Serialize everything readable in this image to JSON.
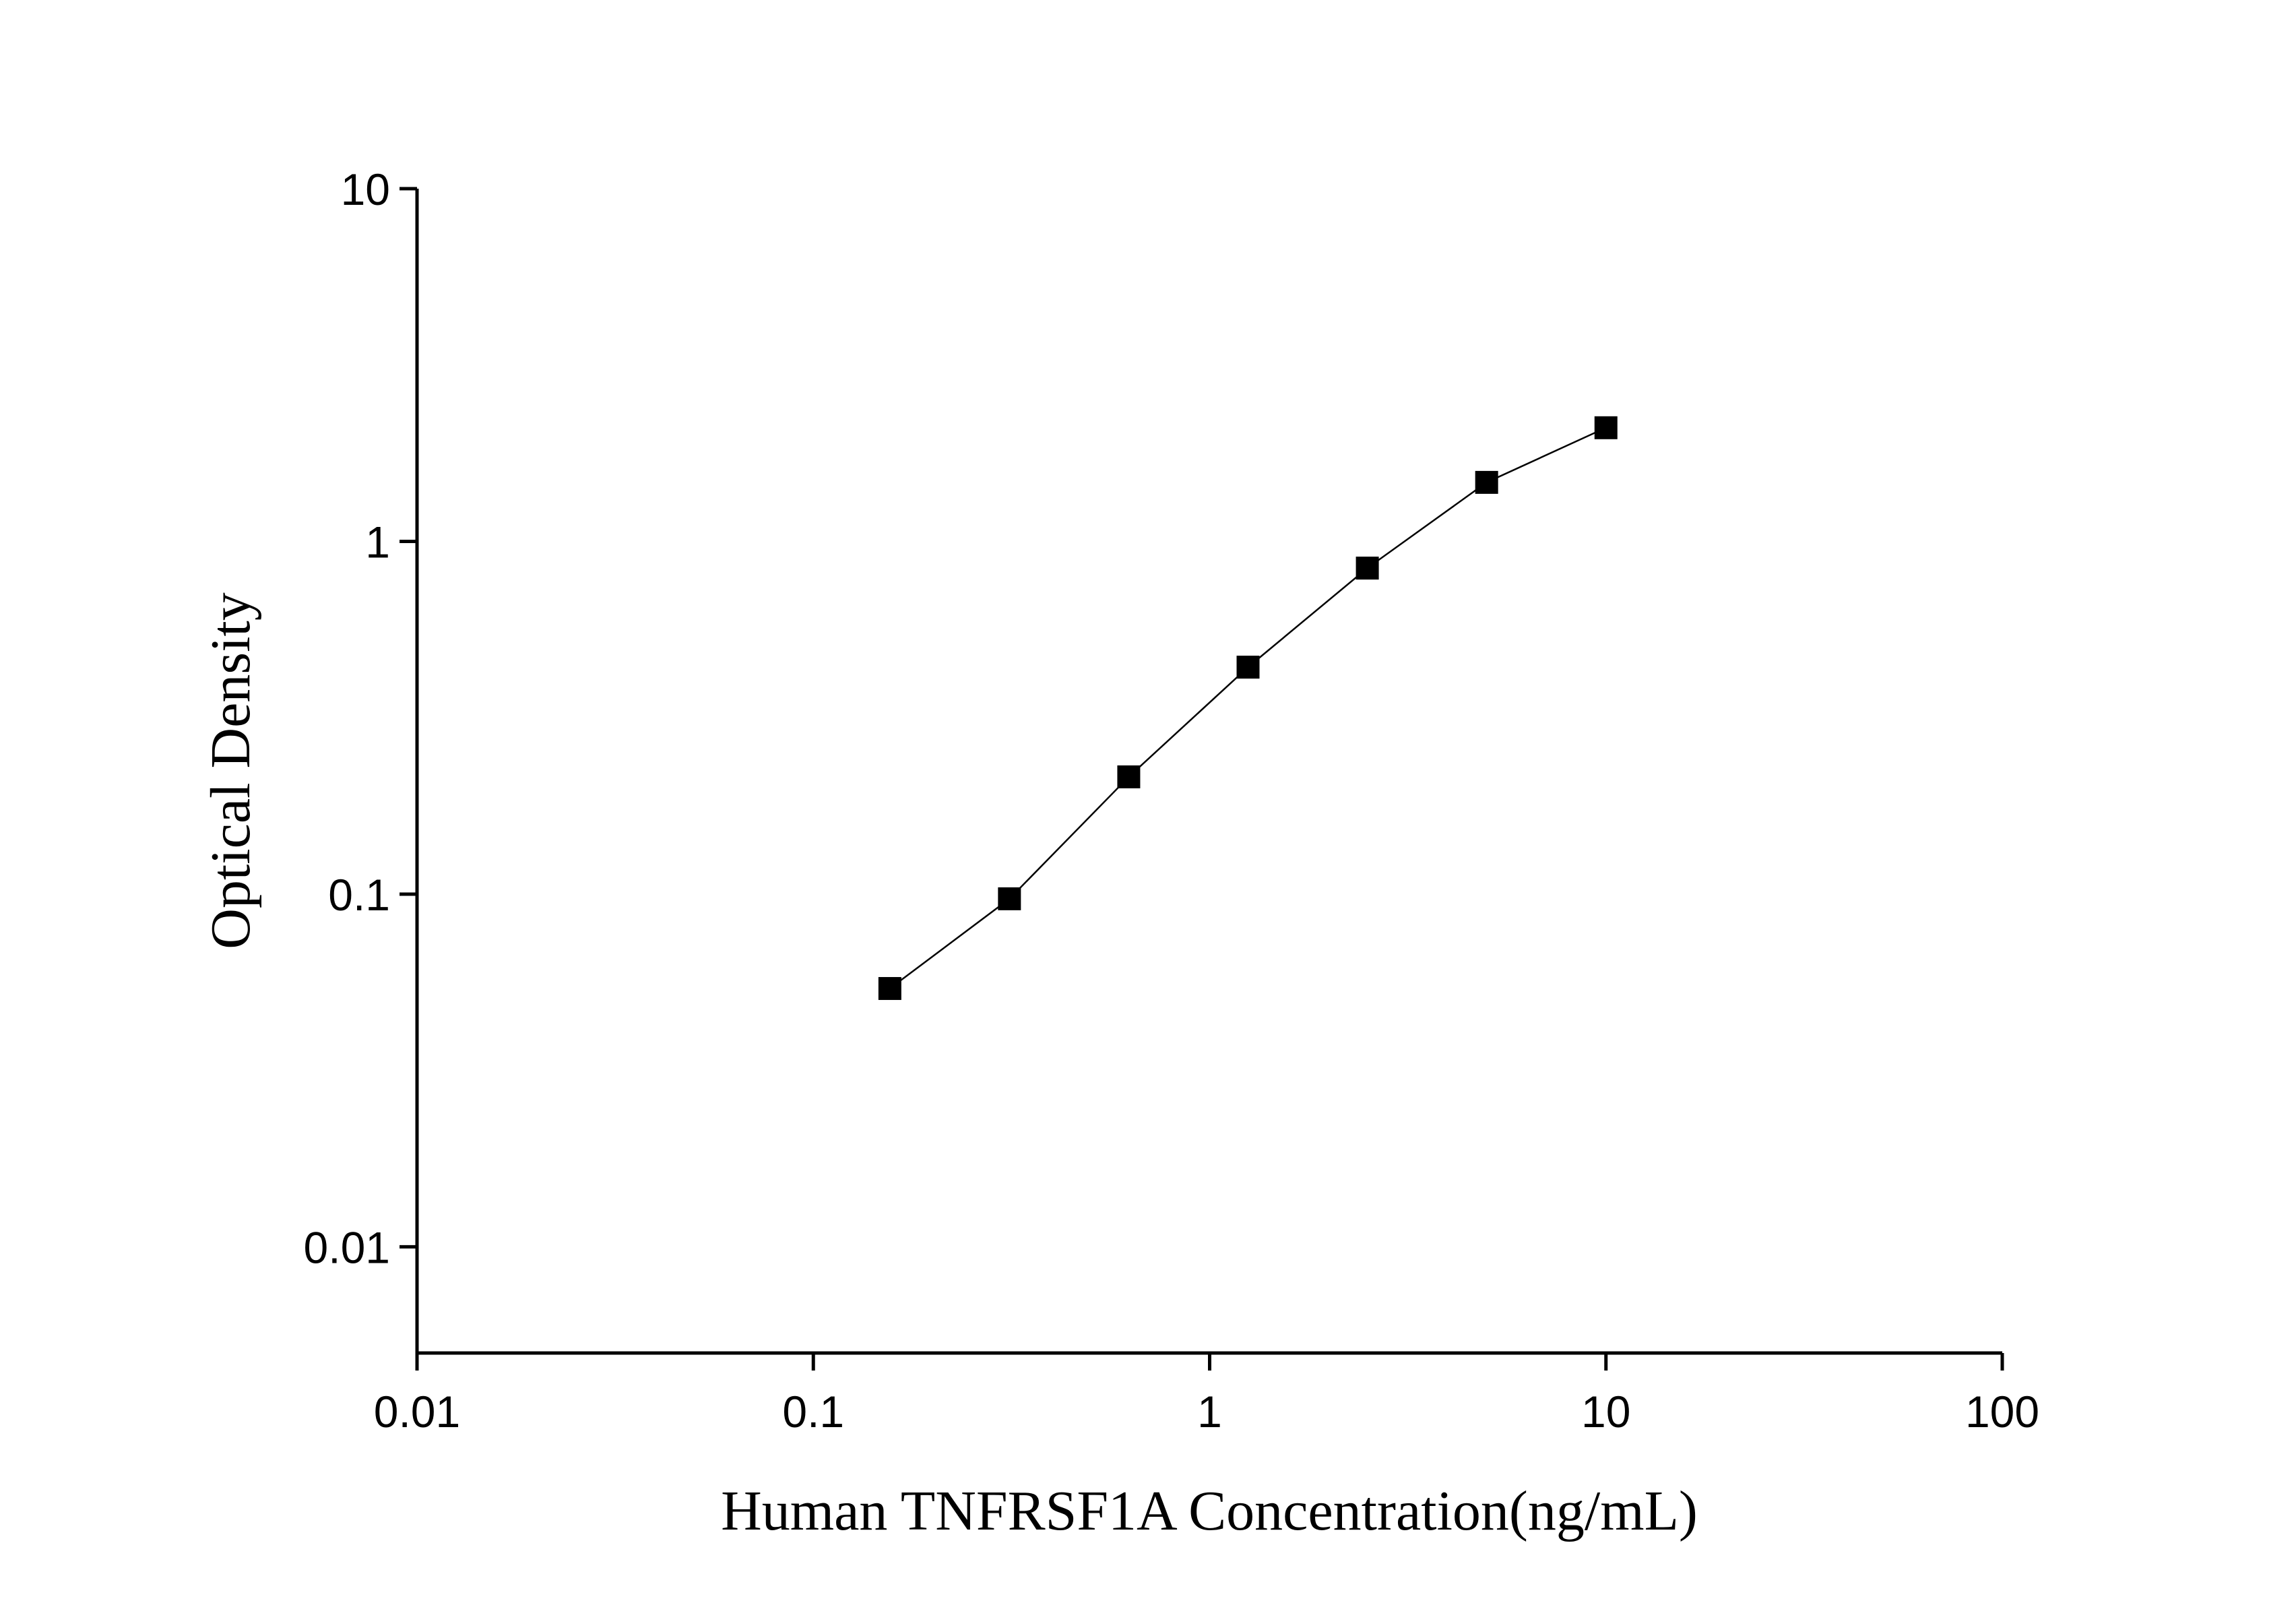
{
  "chart_data": {
    "type": "line",
    "x_label": "Human TNFRSF1A Concentration(ng/mL)",
    "y_label": "Optical Density",
    "x": [
      0.156,
      0.3125,
      0.625,
      1.25,
      2.5,
      5,
      10
    ],
    "series": [
      {
        "color": "#000000",
        "values": [
          0.054,
          0.097,
          0.215,
          0.44,
          0.84,
          1.47,
          2.1
        ]
      }
    ],
    "marker": "square",
    "xscale": "log",
    "yscale": "log",
    "xlim": [
      0.01,
      100
    ],
    "ylim": [
      0.005,
      10
    ],
    "xticks": [
      0.01,
      0.1,
      1,
      10,
      100
    ],
    "yticks": [
      0.01,
      0.1,
      1,
      10
    ],
    "grid": false
  }
}
